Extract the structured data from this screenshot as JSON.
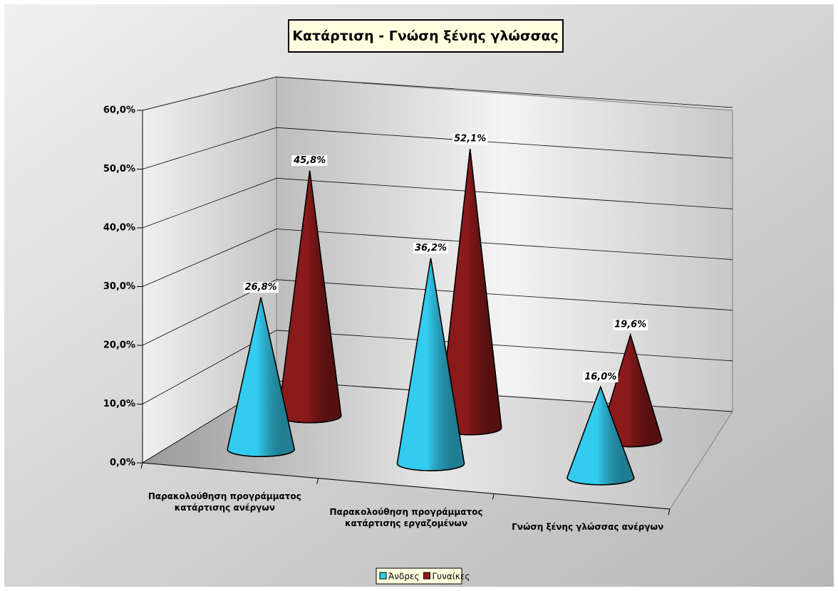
{
  "chart_data": {
    "type": "cone3d",
    "title": "Κατάρτιση - Γνώση ξένης γλώσσας",
    "categories": [
      "Παρακολούθηση προγράμματος κατάρτισης ανέργων",
      "Παρακολούθηση προγράμματος κατάρτισης εργαζομένων",
      "Γνώση ξένης γλώσσας ανέργων"
    ],
    "series": [
      {
        "name": "Άνδρες",
        "color": "#33ccee",
        "values": [
          26.8,
          36.2,
          16.0
        ],
        "value_labels": [
          "26,8%",
          "36,2%",
          "16,0%"
        ]
      },
      {
        "name": "Γυναίκες",
        "color": "#8b1a1a",
        "values": [
          45.8,
          52.1,
          19.6
        ],
        "value_labels": [
          "45,8%",
          "52,1%",
          "19,6%"
        ]
      }
    ],
    "ylim": [
      0,
      60
    ],
    "yticks": [
      {
        "value": 0,
        "label": "0,0%"
      },
      {
        "value": 10,
        "label": "10,0%"
      },
      {
        "value": 20,
        "label": "20,0%"
      },
      {
        "value": 30,
        "label": "30,0%"
      },
      {
        "value": 40,
        "label": "40,0%"
      },
      {
        "value": 50,
        "label": "50,0%"
      },
      {
        "value": 60,
        "label": "60,0%"
      }
    ],
    "grid": true
  }
}
